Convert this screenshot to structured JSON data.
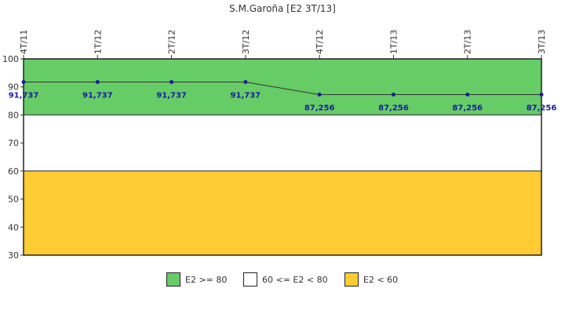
{
  "chart_data": {
    "type": "line",
    "title": "S.M.Garoña [E2 3T/13]",
    "categories": [
      "4T/11",
      "1T/12",
      "2T/12",
      "3T/12",
      "4T/12",
      "1T/13",
      "2T/13",
      "3T/13"
    ],
    "series": [
      {
        "values": [
          91.737,
          91.737,
          91.737,
          91.737,
          87.256,
          87.256,
          87.256,
          87.256
        ],
        "labels": [
          "91,737",
          "91,737",
          "91,737",
          "91,737",
          "87,256",
          "87,256",
          "87,256",
          "87,256"
        ],
        "color": "#1a1aa6"
      }
    ],
    "ylim": [
      30,
      100
    ],
    "yticks": [
      "30",
      "40",
      "50",
      "60",
      "70",
      "80",
      "90",
      "100"
    ],
    "bands": [
      {
        "from": 80,
        "to": 100,
        "color": "#66cc66",
        "label": "E2 >= 80"
      },
      {
        "from": 60,
        "to": 80,
        "color": "#ffffff",
        "label": "60 <= E2 < 80"
      },
      {
        "from": 30,
        "to": 60,
        "color": "#ffcc33",
        "label": "E2 < 60"
      }
    ],
    "legend_position": "bottom",
    "grid": false
  }
}
